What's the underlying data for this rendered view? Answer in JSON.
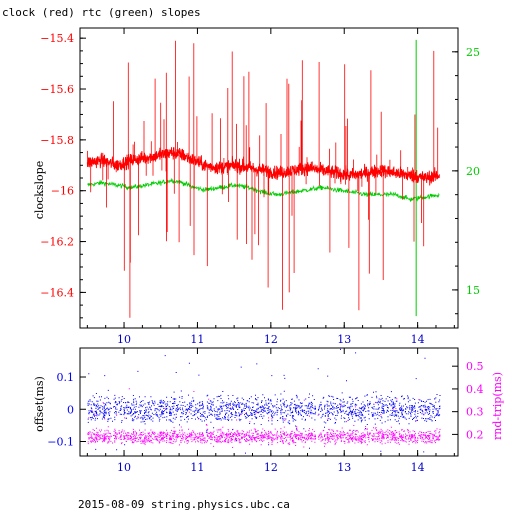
{
  "page": {
    "title": "clock (red) rtc (green) slopes",
    "footer": "2015-08-09  string.physics.ubc.ca"
  },
  "colors": {
    "clock": "#ff0000",
    "rtc": "#00cc00",
    "offset": "#0000ff",
    "rtt": "#ff00ff",
    "axis": "#000000"
  },
  "chart_data": [
    {
      "type": "line",
      "title": "clock (red) rtc (green) slopes",
      "ylabel": "clockslope",
      "xlim": [
        9.4,
        14.55
      ],
      "ylim": [
        -16.54,
        -15.36
      ],
      "y2lim": [
        13.4,
        26.0
      ],
      "x_ticks": [
        10,
        11,
        12,
        13,
        14
      ],
      "y_ticks": [
        -16.4,
        -16.2,
        -16,
        -15.8,
        -15.6,
        -15.4
      ],
      "y2_ticks": [
        15,
        20,
        25
      ],
      "series": [
        {
          "name": "clock",
          "axis": "left",
          "x": [
            9.5,
            9.7,
            9.9,
            10.1,
            10.3,
            10.5,
            10.65,
            10.8,
            10.95,
            11.1,
            11.3,
            11.5,
            11.7,
            11.9,
            12.1,
            12.3,
            12.5,
            12.7,
            12.9,
            13.1,
            13.3,
            13.5,
            13.7,
            13.9,
            14.1,
            14.3
          ],
          "values": [
            -15.89,
            -15.88,
            -15.9,
            -15.88,
            -15.87,
            -15.86,
            -15.85,
            -15.86,
            -15.88,
            -15.9,
            -15.91,
            -15.9,
            -15.91,
            -15.92,
            -15.93,
            -15.92,
            -15.91,
            -15.92,
            -15.93,
            -15.94,
            -15.93,
            -15.92,
            -15.93,
            -15.94,
            -15.95,
            -15.94
          ]
        },
        {
          "name": "rtc",
          "axis": "right",
          "x": [
            9.5,
            9.7,
            9.9,
            10.1,
            10.3,
            10.5,
            10.65,
            10.8,
            10.95,
            11.1,
            11.3,
            11.5,
            11.7,
            11.9,
            12.1,
            12.3,
            12.5,
            12.7,
            12.9,
            13.1,
            13.3,
            13.5,
            13.7,
            13.9,
            14.1,
            14.3
          ],
          "values": [
            19.4,
            19.5,
            19.4,
            19.3,
            19.4,
            19.5,
            19.6,
            19.5,
            19.3,
            19.2,
            19.3,
            19.4,
            19.3,
            19.1,
            19.0,
            19.1,
            19.2,
            19.3,
            19.2,
            19.1,
            19.0,
            19.0,
            19.0,
            18.8,
            18.9,
            19.0
          ]
        }
      ]
    },
    {
      "type": "scatter",
      "ylabel": "offset(ms)",
      "y2label": "rnd-trip(ms)",
      "xlim": [
        9.4,
        14.55
      ],
      "ylim": [
        -0.145,
        0.19
      ],
      "y2lim": [
        0.105,
        0.58
      ],
      "x_ticks": [
        10,
        11,
        12,
        13,
        14
      ],
      "y_ticks": [
        -0.1,
        0,
        0.1
      ],
      "y2_ticks": [
        0.2,
        0.3,
        0.4,
        0.5
      ],
      "series": [
        {
          "name": "offset",
          "axis": "left",
          "center": 0.0,
          "spread": 0.04,
          "x_range": [
            9.5,
            14.3
          ]
        },
        {
          "name": "rnd-trip",
          "axis": "right",
          "center": 0.19,
          "spread": 0.03,
          "x_range": [
            9.5,
            14.3
          ]
        }
      ]
    }
  ]
}
